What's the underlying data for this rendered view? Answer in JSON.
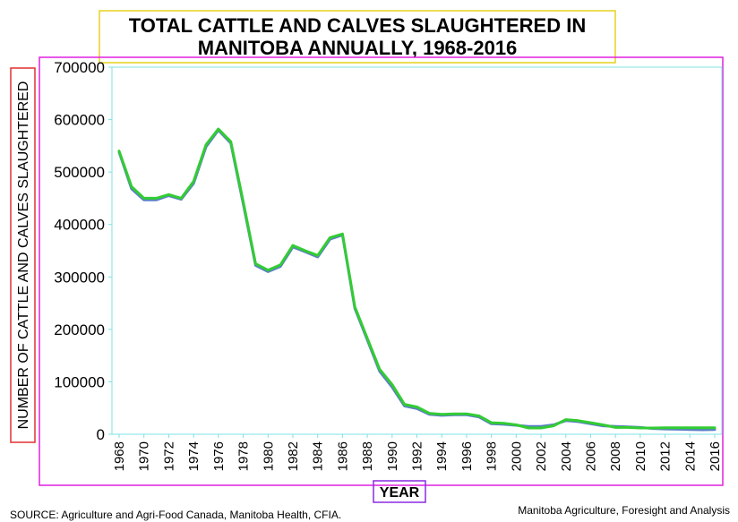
{
  "chart_data": {
    "type": "line",
    "title_line1": "TOTAL CATTLE AND CALVES SLAUGHTERED IN",
    "title_line2": "MANITOBA ANNUALLY, 1968-2016",
    "xlabel": "YEAR",
    "ylabel": "NUMBER OF CATTLE AND CALVES SLAUGHTERED",
    "source": "SOURCE: Agriculture and Agri-Food Canada, Manitoba Health, CFIA.",
    "credit": "Manitoba Agriculture, Foresight and Analysis",
    "xlim": [
      1968,
      2016
    ],
    "ylim": [
      0,
      700000
    ],
    "x_ticks": [
      1968,
      1970,
      1972,
      1974,
      1976,
      1978,
      1980,
      1982,
      1984,
      1986,
      1988,
      1990,
      1992,
      1994,
      1996,
      1998,
      2000,
      2002,
      2004,
      2006,
      2008,
      2010,
      2012,
      2014,
      2016
    ],
    "y_ticks": [
      0,
      100000,
      200000,
      300000,
      400000,
      500000,
      600000,
      700000
    ],
    "grid": false,
    "x": [
      1968,
      1969,
      1970,
      1971,
      1972,
      1973,
      1974,
      1975,
      1976,
      1977,
      1978,
      1979,
      1980,
      1981,
      1982,
      1983,
      1984,
      1985,
      1986,
      1987,
      1988,
      1989,
      1990,
      1991,
      1992,
      1993,
      1994,
      1995,
      1996,
      1997,
      1998,
      1999,
      2000,
      2001,
      2002,
      2003,
      2004,
      2005,
      2006,
      2007,
      2008,
      2009,
      2010,
      2011,
      2012,
      2013,
      2014,
      2015,
      2016
    ],
    "series": [
      {
        "color": "#5b7fc7",
        "values": [
          538000,
          468000,
          447000,
          447000,
          455000,
          448000,
          478000,
          548000,
          580000,
          555000,
          440000,
          322000,
          310000,
          320000,
          357000,
          348000,
          338000,
          372000,
          380000,
          240000,
          180000,
          120000,
          90000,
          54000,
          49000,
          38000,
          36000,
          37000,
          37000,
          33000,
          20000,
          19000,
          17000,
          15000,
          15000,
          18000,
          26000,
          24000,
          20000,
          16000,
          15000,
          14000,
          13000,
          11000,
          10000,
          9500,
          9000,
          8500,
          9000
        ]
      },
      {
        "color": "#33cc33",
        "values": [
          540000,
          472000,
          450000,
          450000,
          457000,
          450000,
          482000,
          552000,
          582000,
          558000,
          444000,
          325000,
          313000,
          323000,
          360000,
          350000,
          341000,
          375000,
          382000,
          243000,
          183000,
          124000,
          95000,
          57000,
          52000,
          40000,
          38000,
          39000,
          39000,
          35000,
          22000,
          21000,
          18000,
          12000,
          12000,
          16000,
          28000,
          26000,
          22000,
          18000,
          13000,
          13000,
          12000,
          12000,
          12500,
          12500,
          12500,
          12500,
          12500
        ]
      }
    ]
  }
}
